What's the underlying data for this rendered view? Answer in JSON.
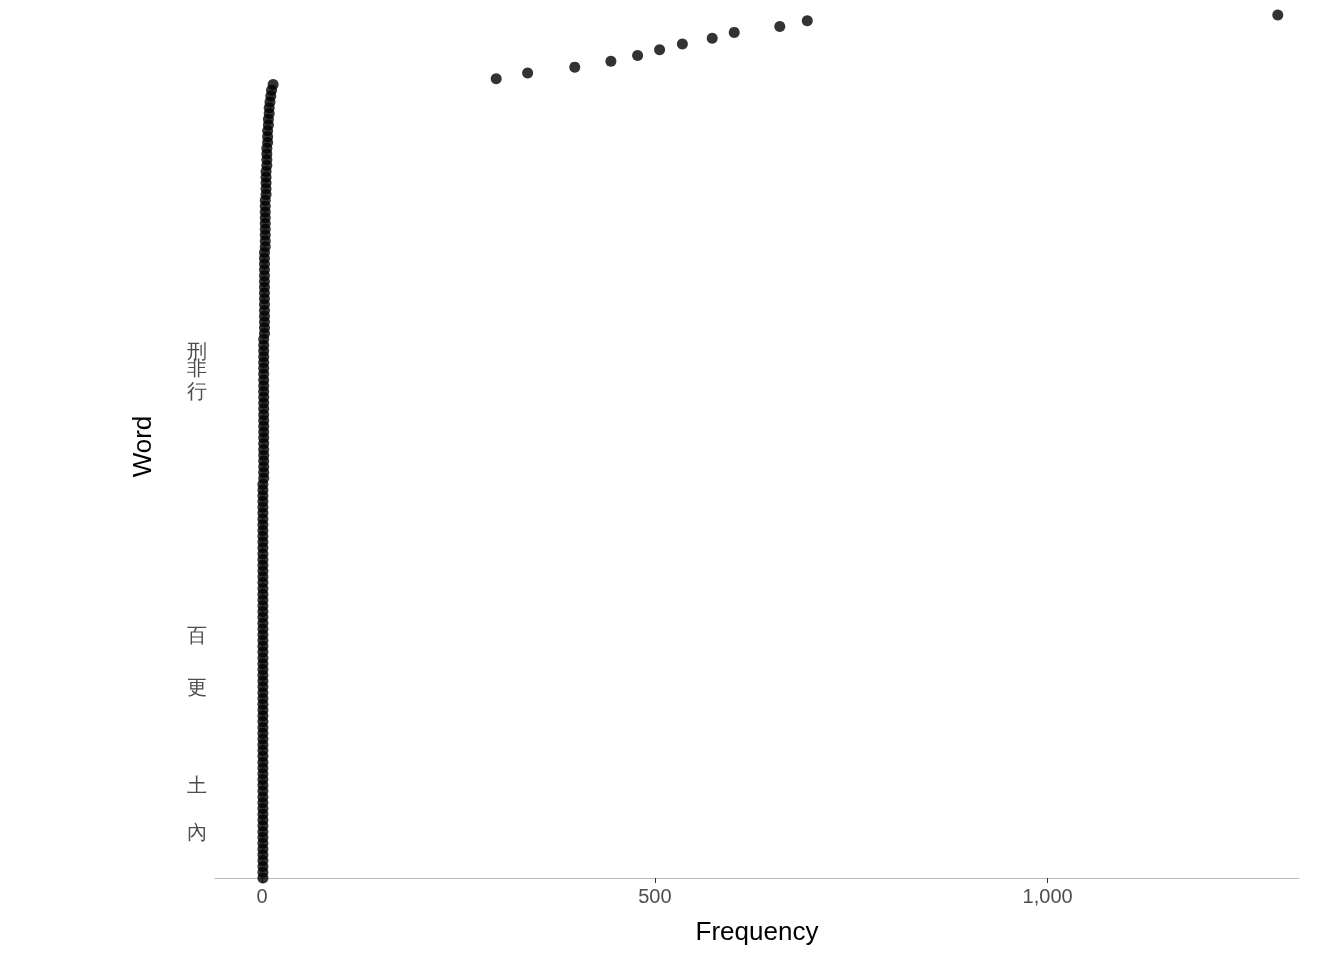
{
  "chart_data": {
    "type": "scatter",
    "orientation": "horizontal",
    "xlabel": "Frequency",
    "ylabel": "Word",
    "categories": [
      null,
      null,
      null,
      null,
      null,
      null,
      null,
      null,
      null,
      null,
      null,
      null,
      null,
      null,
      null,
      null,
      null,
      null,
      null,
      null,
      null,
      null,
      null,
      null,
      null,
      null,
      null,
      null,
      null,
      null,
      null,
      null,
      null,
      null,
      null,
      null,
      null,
      null,
      null,
      null,
      null,
      null,
      null,
      null,
      null,
      null,
      null,
      null,
      null,
      null,
      null,
      null,
      null,
      null,
      null,
      null,
      null,
      null,
      "刑",
      null,
      null,
      "非",
      null,
      null,
      null,
      "行",
      null,
      null,
      null,
      null,
      null,
      null,
      null,
      null,
      null,
      null,
      null,
      null,
      null,
      null,
      null,
      null,
      null,
      null,
      null,
      null,
      null,
      null,
      null,
      null,
      null,
      null,
      null,
      null,
      null,
      null,
      null,
      null,
      null,
      null,
      null,
      null,
      null,
      null,
      null,
      null,
      null,
      "百",
      null,
      null,
      null,
      null,
      null,
      null,
      null,
      null,
      "更",
      null,
      null,
      null,
      null,
      null,
      null,
      null,
      null,
      null,
      null,
      null,
      null,
      null,
      null,
      null,
      null,
      "土",
      null,
      null,
      null,
      null,
      null,
      null,
      null,
      "內",
      null,
      null,
      null,
      null,
      null,
      null,
      null,
      null
    ],
    "values": [
      1293,
      694,
      659,
      601,
      573,
      535,
      506,
      478,
      444,
      398,
      338,
      298,
      14,
      12,
      11,
      10,
      9,
      9,
      8,
      8,
      7,
      7,
      7,
      6,
      6,
      6,
      6,
      5,
      5,
      5,
      5,
      5,
      4,
      4,
      4,
      4,
      4,
      4,
      4,
      4,
      4,
      3,
      3,
      3,
      3,
      3,
      3,
      3,
      3,
      3,
      3,
      3,
      3,
      3,
      3,
      3,
      2,
      2,
      2,
      2,
      2,
      2,
      2,
      2,
      2,
      2,
      2,
      2,
      2,
      2,
      2,
      2,
      2,
      2,
      2,
      2,
      2,
      2,
      2,
      2,
      2,
      1,
      1,
      1,
      1,
      1,
      1,
      1,
      1,
      1,
      1,
      1,
      1,
      1,
      1,
      1,
      1,
      1,
      1,
      1,
      1,
      1,
      1,
      1,
      1,
      1,
      1,
      1,
      1,
      1,
      1,
      1,
      1,
      1,
      1,
      1,
      1,
      1,
      1,
      1,
      1,
      1,
      1,
      1,
      1,
      1,
      1,
      1,
      1,
      1,
      1,
      1,
      1,
      1,
      1,
      1,
      1,
      1,
      1,
      1,
      1,
      1,
      1,
      1,
      1,
      1,
      1,
      1,
      1,
      1
    ],
    "color": "#000000",
    "marker": "circle",
    "grid": false,
    "xlim": [
      -60,
      1320
    ],
    "xticks": [
      0,
      500,
      {
        "value": 1000,
        "label": "1,000"
      }
    ]
  }
}
